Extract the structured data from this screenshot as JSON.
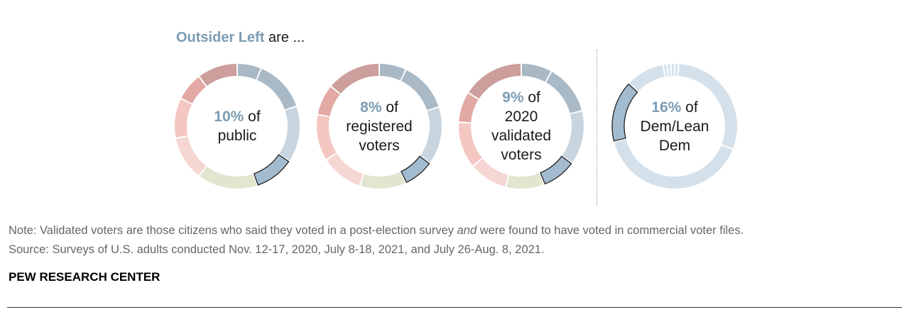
{
  "headline": {
    "highlight": "Outsider Left",
    "rest": " are ..."
  },
  "colors": {
    "highlight": "#7c9cb3",
    "outline": "#222222"
  },
  "chart_data": [
    {
      "type": "pie",
      "variant": "donut",
      "highlight_value": "10%",
      "label_rest": [
        "of",
        "public"
      ],
      "segments": [
        {
          "value": 6,
          "color": "#a8b8c5"
        },
        {
          "value": 13,
          "color": "#a9b9c6"
        },
        {
          "value": 14,
          "color": "#c9d5de"
        },
        {
          "value": 10,
          "color": "#a3bbcf",
          "highlighted": true
        },
        {
          "value": 15,
          "color": "#e3e6cf"
        },
        {
          "value": 11,
          "color": "#f6d6d3"
        },
        {
          "value": 10,
          "color": "#f4c7c3"
        },
        {
          "value": 7,
          "color": "#e3a9a5"
        },
        {
          "value": 10,
          "color": "#cc9e9c"
        }
      ]
    },
    {
      "type": "pie",
      "variant": "donut",
      "highlight_value": "8%",
      "label_rest": [
        "of",
        "registered",
        "voters"
      ],
      "segments": [
        {
          "value": 7,
          "color": "#a8b8c5"
        },
        {
          "value": 13,
          "color": "#a9b9c6"
        },
        {
          "value": 15,
          "color": "#c9d5de"
        },
        {
          "value": 8,
          "color": "#a3bbcf",
          "highlighted": true
        },
        {
          "value": 12,
          "color": "#e3e6cf"
        },
        {
          "value": 11,
          "color": "#f6d6d3"
        },
        {
          "value": 12,
          "color": "#f4c7c3"
        },
        {
          "value": 8,
          "color": "#e3a9a5"
        },
        {
          "value": 14,
          "color": "#cc9e9c"
        }
      ]
    },
    {
      "type": "pie",
      "variant": "donut",
      "highlight_value": "9%",
      "label_rest": [
        "of",
        "2020",
        "validated",
        "voters"
      ],
      "segments": [
        {
          "value": 8,
          "color": "#a8b8c5"
        },
        {
          "value": 13,
          "color": "#a9b9c6"
        },
        {
          "value": 14,
          "color": "#c9d5de"
        },
        {
          "value": 9,
          "color": "#a3bbcf",
          "highlighted": true
        },
        {
          "value": 10,
          "color": "#e3e6cf"
        },
        {
          "value": 10,
          "color": "#f6d6d3"
        },
        {
          "value": 12,
          "color": "#f4c7c3"
        },
        {
          "value": 8,
          "color": "#e3a9a5"
        },
        {
          "value": 16,
          "color": "#cc9e9c"
        }
      ]
    },
    {
      "type": "pie",
      "variant": "donut",
      "highlight_value": "16%",
      "label_rest": [
        "of",
        "Dem/Lean",
        "Dem"
      ],
      "segments": [
        {
          "value": 1,
          "color": "#d5e1ea"
        },
        {
          "value": 30,
          "color": "#d5e1ea"
        },
        {
          "value": 40,
          "color": "#d5e1ea"
        },
        {
          "value": 16,
          "color": "#a3bbcf",
          "highlighted": true
        },
        {
          "value": 10,
          "color": "#d5e1ea"
        },
        {
          "value": 1,
          "color": "#d5e1ea"
        },
        {
          "value": 1,
          "color": "#d5e1ea"
        },
        {
          "value": 1,
          "color": "#d5e1ea"
        }
      ]
    }
  ],
  "notes": {
    "line1_pre": "Note: Validated voters are those citizens who said they voted in a post-election survey ",
    "line1_em": "and",
    "line1_post": " were found to have voted in commercial voter files.",
    "line2": "Source: Surveys of U.S. adults conducted Nov. 12-17, 2020, July 8-18, 2021, and July 26-Aug. 8, 2021."
  },
  "brand": "PEW RESEARCH CENTER"
}
